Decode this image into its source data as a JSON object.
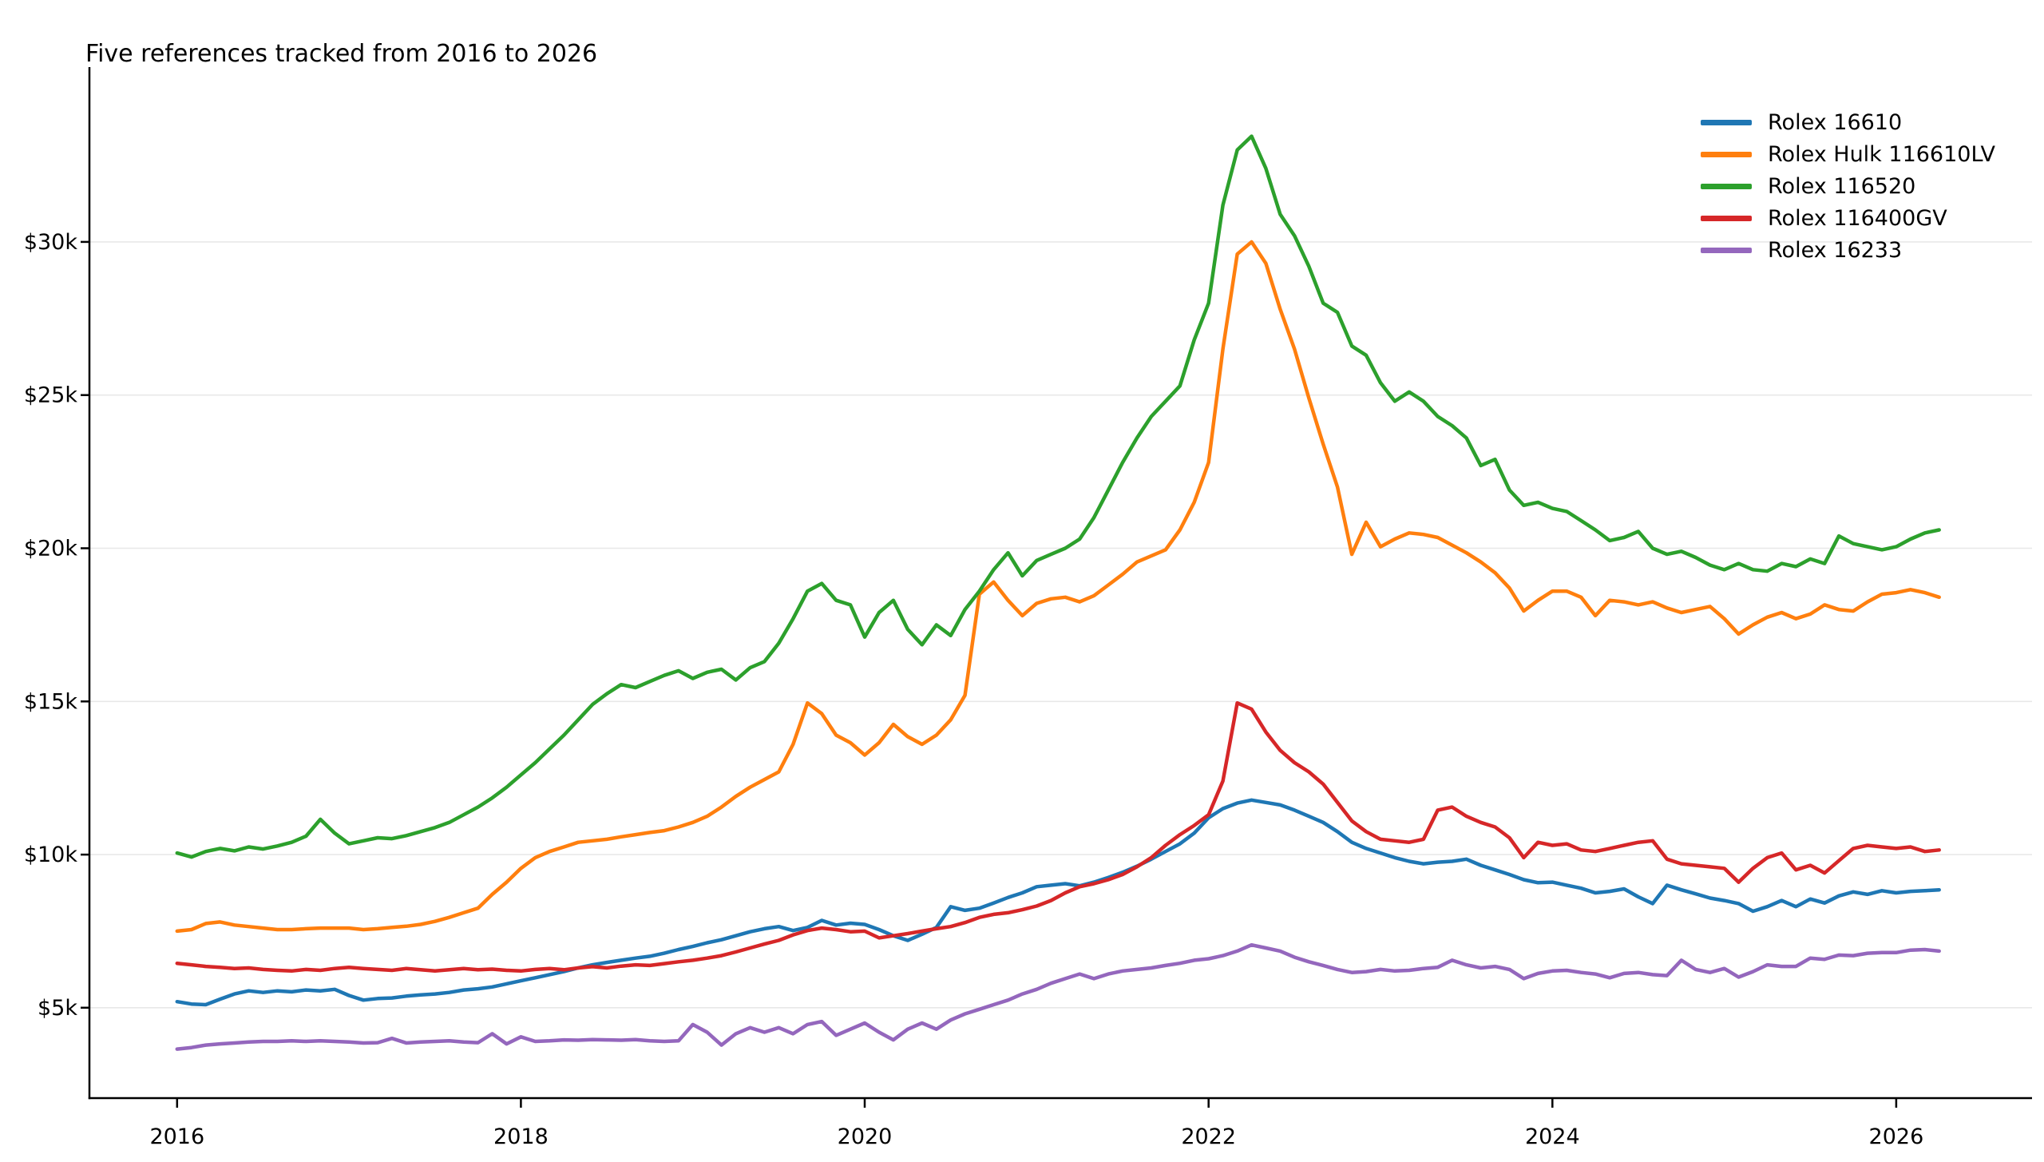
{
  "chart_data": {
    "type": "line",
    "title": "Five references tracked from 2016 to 2026",
    "xlabel": "",
    "ylabel": "",
    "x_start_year": 2016,
    "x_step_months": 1,
    "x_end_year": 2026.25,
    "xlim": [
      2015.49,
      2026.79
    ],
    "ylim_thousands": [
      2.05,
      35.55
    ],
    "grid": "horizontal-only",
    "grid_color": "#e8e8e8",
    "axis_color": "#000000",
    "legend_position": "upper-right",
    "legend_frame": false,
    "xticks": [
      {
        "label": "2016",
        "year": 2016
      },
      {
        "label": "2018",
        "year": 2018
      },
      {
        "label": "2020",
        "year": 2020
      },
      {
        "label": "2022",
        "year": 2022
      },
      {
        "label": "2024",
        "year": 2024
      },
      {
        "label": "2026",
        "year": 2026
      }
    ],
    "yticks": [
      {
        "label": "$5k",
        "value": 5
      },
      {
        "label": "$10k",
        "value": 10
      },
      {
        "label": "$15k",
        "value": 15
      },
      {
        "label": "$20k",
        "value": 20
      },
      {
        "label": "$25k",
        "value": 25
      },
      {
        "label": "$30k",
        "value": 30
      }
    ],
    "series": [
      {
        "name": "Rolex 16610",
        "color": "#1f77b4",
        "values_k_monthly": [
          5.2,
          5.12,
          5.1,
          5.28,
          5.45,
          5.55,
          5.5,
          5.55,
          5.52,
          5.58,
          5.55,
          5.6,
          5.4,
          5.25,
          5.3,
          5.32,
          5.38,
          5.42,
          5.45,
          5.5,
          5.58,
          5.62,
          5.68,
          5.78,
          5.88,
          5.98,
          6.08,
          6.18,
          6.3,
          6.4,
          6.48,
          6.55,
          6.62,
          6.68,
          6.78,
          6.9,
          7.0,
          7.12,
          7.22,
          7.35,
          7.48,
          7.58,
          7.65,
          7.52,
          7.62,
          7.85,
          7.7,
          7.76,
          7.72,
          7.55,
          7.35,
          7.2,
          7.4,
          7.62,
          8.3,
          8.18,
          8.25,
          8.42,
          8.6,
          8.75,
          8.95,
          9.0,
          9.05,
          8.98,
          9.1,
          9.25,
          9.42,
          9.62,
          9.85,
          10.1,
          10.35,
          10.7,
          11.2,
          11.5,
          11.68,
          11.78,
          11.7,
          11.62,
          11.45,
          11.25,
          11.05,
          10.75,
          10.4,
          10.2,
          10.05,
          9.9,
          9.78,
          9.7,
          9.75,
          9.78,
          9.85,
          9.65,
          9.5,
          9.35,
          9.18,
          9.08,
          9.1,
          9.0,
          8.9,
          8.75,
          8.8,
          8.88,
          8.62,
          8.4,
          9.0,
          8.85,
          8.72,
          8.58,
          8.5,
          8.4,
          8.15,
          8.3,
          8.5,
          8.3,
          8.55,
          8.42,
          8.65,
          8.78,
          8.7,
          8.82,
          8.75,
          8.8,
          8.82,
          8.85
        ]
      },
      {
        "name": "Rolex Hulk 116610LV",
        "color": "#ff7f0e",
        "values_k_monthly": [
          7.5,
          7.55,
          7.75,
          7.8,
          7.7,
          7.65,
          7.6,
          7.55,
          7.55,
          7.58,
          7.6,
          7.6,
          7.6,
          7.55,
          7.58,
          7.62,
          7.66,
          7.72,
          7.82,
          7.95,
          8.1,
          8.25,
          8.7,
          9.1,
          9.55,
          9.9,
          10.1,
          10.25,
          10.4,
          10.45,
          10.5,
          10.58,
          10.65,
          10.72,
          10.78,
          10.9,
          11.05,
          11.25,
          11.55,
          11.9,
          12.2,
          12.45,
          12.7,
          13.6,
          14.95,
          14.6,
          13.9,
          13.65,
          13.25,
          13.65,
          14.25,
          13.85,
          13.6,
          13.9,
          14.4,
          15.2,
          18.5,
          18.9,
          18.3,
          17.8,
          18.2,
          18.35,
          18.4,
          18.25,
          18.45,
          18.8,
          19.15,
          19.55,
          19.75,
          19.95,
          20.6,
          21.5,
          22.8,
          26.5,
          29.6,
          30.0,
          29.3,
          27.8,
          26.5,
          24.9,
          23.4,
          22.0,
          19.8,
          20.85,
          20.05,
          20.3,
          20.5,
          20.45,
          20.35,
          20.1,
          19.85,
          19.55,
          19.2,
          18.7,
          17.95,
          18.3,
          18.6,
          18.6,
          18.4,
          17.8,
          18.3,
          18.25,
          18.15,
          18.25,
          18.05,
          17.9,
          18.0,
          18.1,
          17.7,
          17.2,
          17.5,
          17.75,
          17.9,
          17.7,
          17.85,
          18.15,
          18.0,
          17.95,
          18.25,
          18.5,
          18.55,
          18.65,
          18.55,
          18.4
        ]
      },
      {
        "name": "Rolex 116520",
        "color": "#2ca02c",
        "values_k_monthly": [
          10.05,
          9.92,
          10.1,
          10.2,
          10.12,
          10.25,
          10.18,
          10.28,
          10.4,
          10.6,
          11.15,
          10.7,
          10.35,
          10.45,
          10.55,
          10.52,
          10.62,
          10.75,
          10.88,
          11.05,
          11.3,
          11.55,
          11.85,
          12.2,
          12.6,
          13.0,
          13.45,
          13.9,
          14.4,
          14.9,
          15.25,
          15.55,
          15.45,
          15.65,
          15.85,
          16.0,
          15.75,
          15.95,
          16.05,
          15.7,
          16.1,
          16.3,
          16.9,
          17.7,
          18.6,
          18.85,
          18.3,
          18.15,
          17.1,
          17.9,
          18.3,
          17.35,
          16.85,
          17.5,
          17.15,
          18.0,
          18.6,
          19.3,
          19.85,
          19.1,
          19.6,
          19.8,
          20.0,
          20.3,
          21.0,
          21.9,
          22.8,
          23.6,
          24.3,
          24.8,
          25.3,
          26.8,
          28.0,
          31.2,
          33.0,
          33.45,
          32.4,
          30.9,
          30.2,
          29.2,
          28.0,
          27.7,
          26.6,
          26.3,
          25.4,
          24.8,
          25.1,
          24.8,
          24.3,
          24.0,
          23.6,
          22.7,
          22.9,
          21.9,
          21.4,
          21.5,
          21.3,
          21.2,
          20.9,
          20.6,
          20.25,
          20.35,
          20.55,
          20.0,
          19.8,
          19.9,
          19.7,
          19.45,
          19.3,
          19.5,
          19.3,
          19.25,
          19.5,
          19.4,
          19.65,
          19.5,
          20.4,
          20.15,
          20.05,
          19.95,
          20.05,
          20.3,
          20.5,
          20.6
        ]
      },
      {
        "name": "Rolex 116400GV",
        "color": "#d62728",
        "values_k_monthly": [
          6.45,
          6.4,
          6.35,
          6.32,
          6.28,
          6.3,
          6.25,
          6.22,
          6.2,
          6.25,
          6.22,
          6.28,
          6.32,
          6.28,
          6.25,
          6.22,
          6.28,
          6.24,
          6.2,
          6.24,
          6.28,
          6.24,
          6.26,
          6.22,
          6.2,
          6.25,
          6.28,
          6.24,
          6.3,
          6.34,
          6.3,
          6.36,
          6.4,
          6.38,
          6.44,
          6.5,
          6.55,
          6.62,
          6.7,
          6.82,
          6.95,
          7.08,
          7.2,
          7.38,
          7.52,
          7.6,
          7.55,
          7.48,
          7.5,
          7.28,
          7.35,
          7.42,
          7.5,
          7.58,
          7.65,
          7.78,
          7.95,
          8.05,
          8.1,
          8.2,
          8.32,
          8.5,
          8.75,
          8.95,
          9.05,
          9.18,
          9.35,
          9.6,
          9.9,
          10.3,
          10.65,
          10.95,
          11.3,
          12.4,
          14.95,
          14.75,
          14.0,
          13.4,
          13.0,
          12.7,
          12.3,
          11.7,
          11.1,
          10.75,
          10.5,
          10.45,
          10.4,
          10.5,
          11.45,
          11.55,
          11.25,
          11.05,
          10.9,
          10.55,
          9.9,
          10.4,
          10.3,
          10.35,
          10.15,
          10.1,
          10.2,
          10.3,
          10.4,
          10.45,
          9.85,
          9.7,
          9.65,
          9.6,
          9.55,
          9.1,
          9.55,
          9.9,
          10.05,
          9.5,
          9.65,
          9.4,
          9.8,
          10.2,
          10.3,
          10.25,
          10.2,
          10.25,
          10.1,
          10.15
        ]
      },
      {
        "name": "Rolex 16233",
        "color": "#9467bd",
        "values_k_monthly": [
          3.65,
          3.7,
          3.78,
          3.82,
          3.85,
          3.88,
          3.9,
          3.9,
          3.92,
          3.9,
          3.92,
          3.9,
          3.88,
          3.85,
          3.86,
          4.0,
          3.85,
          3.88,
          3.9,
          3.92,
          3.88,
          3.86,
          4.15,
          3.82,
          4.05,
          3.9,
          3.92,
          3.95,
          3.94,
          3.96,
          3.95,
          3.94,
          3.96,
          3.92,
          3.9,
          3.92,
          4.45,
          4.2,
          3.78,
          4.15,
          4.35,
          4.2,
          4.35,
          4.15,
          4.45,
          4.55,
          4.1,
          4.3,
          4.5,
          4.2,
          3.95,
          4.3,
          4.5,
          4.3,
          4.6,
          4.8,
          4.95,
          5.1,
          5.25,
          5.45,
          5.6,
          5.8,
          5.95,
          6.1,
          5.95,
          6.1,
          6.2,
          6.25,
          6.3,
          6.38,
          6.45,
          6.55,
          6.6,
          6.7,
          6.85,
          7.05,
          6.95,
          6.85,
          6.65,
          6.5,
          6.38,
          6.25,
          6.15,
          6.18,
          6.25,
          6.2,
          6.22,
          6.28,
          6.32,
          6.55,
          6.4,
          6.3,
          6.35,
          6.25,
          5.95,
          6.12,
          6.2,
          6.22,
          6.15,
          6.1,
          5.98,
          6.12,
          6.15,
          6.08,
          6.05,
          6.55,
          6.25,
          6.15,
          6.28,
          6.0,
          6.18,
          6.4,
          6.35,
          6.35,
          6.62,
          6.58,
          6.72,
          6.7,
          6.78,
          6.8,
          6.8,
          6.88,
          6.9,
          6.85
        ]
      }
    ]
  }
}
